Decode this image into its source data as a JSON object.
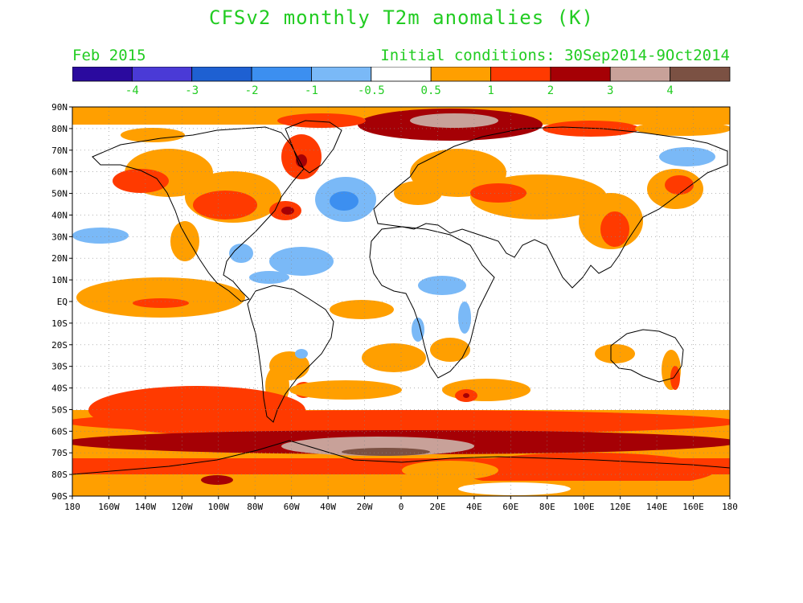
{
  "title": "CFSv2 monthly T2m anomalies (K)",
  "month": "Feb 2015",
  "initial_conditions": "Initial conditions: 30Sep2014-9Oct2014",
  "colorbar": {
    "bins": [
      {
        "color": "#2a0a9e"
      },
      {
        "color": "#4a3ad6"
      },
      {
        "color": "#1e60d2"
      },
      {
        "color": "#3c8ff0"
      },
      {
        "color": "#7ab9f7"
      },
      {
        "color": "#ffffff"
      },
      {
        "color": "#ff9f00"
      },
      {
        "color": "#ff3a00"
      },
      {
        "color": "#a50005"
      },
      {
        "color": "#c8a199"
      },
      {
        "color": "#7b5143"
      }
    ],
    "labels": [
      "-4",
      "-3",
      "-2",
      "-1",
      "-0.5",
      "0.5",
      "1",
      "2",
      "3",
      "4"
    ]
  },
  "colors": {
    "label_green": "#22cc22",
    "cold_light": "#7ab9f7",
    "cold_mid": "#3c8ff0",
    "warm_1": "#ff9f00",
    "warm_2": "#ff3a00",
    "warm_3": "#a50005",
    "warm_4": "#c8a199",
    "warm_5": "#7b5143"
  },
  "map": {
    "lat_labels": [
      "90N",
      "80N",
      "70N",
      "60N",
      "50N",
      "40N",
      "30N",
      "20N",
      "10N",
      "EQ",
      "10S",
      "20S",
      "30S",
      "40S",
      "50S",
      "60S",
      "70S",
      "80S",
      "90S"
    ],
    "lon_labels": [
      "180",
      "160W",
      "140W",
      "120W",
      "100W",
      "80W",
      "60W",
      "40W",
      "20W",
      "0",
      "20E",
      "40E",
      "60E",
      "80E",
      "100E",
      "120E",
      "140E",
      "160E",
      "180"
    ]
  }
}
